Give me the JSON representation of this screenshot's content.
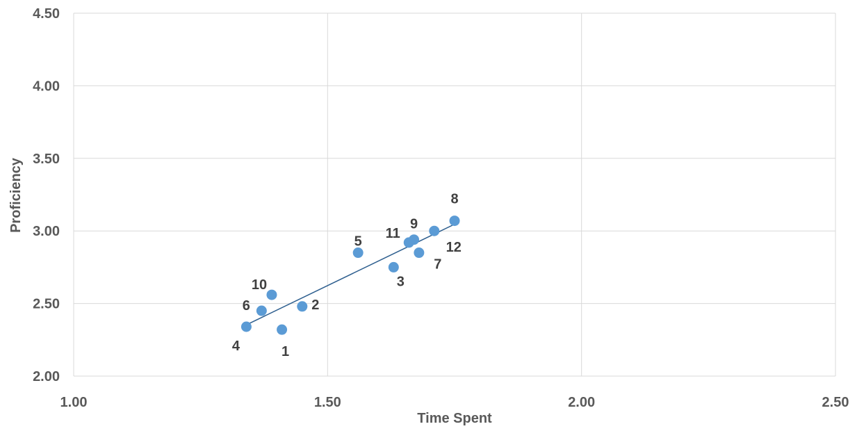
{
  "chart_data": {
    "type": "scatter",
    "title": "",
    "xlabel": "Time Spent",
    "ylabel": "Proficiency",
    "xlim": [
      1.0,
      2.5
    ],
    "ylim": [
      2.0,
      4.5
    ],
    "x_ticks": [
      "1.00",
      "1.50",
      "2.00",
      "2.50"
    ],
    "y_ticks": [
      "2.00",
      "2.50",
      "3.00",
      "3.50",
      "4.00",
      "4.50"
    ],
    "grid": true,
    "marker_color": "#5b9bd5",
    "trendline_color": "#2e5f8f",
    "trendline": true,
    "points": [
      {
        "label": "1",
        "x": 1.41,
        "y": 2.32
      },
      {
        "label": "2",
        "x": 1.45,
        "y": 2.48
      },
      {
        "label": "3",
        "x": 1.63,
        "y": 2.75
      },
      {
        "label": "4",
        "x": 1.34,
        "y": 2.34
      },
      {
        "label": "5",
        "x": 1.56,
        "y": 2.85
      },
      {
        "label": "6",
        "x": 1.37,
        "y": 2.45
      },
      {
        "label": "7",
        "x": 1.68,
        "y": 2.85
      },
      {
        "label": "8",
        "x": 1.75,
        "y": 3.07
      },
      {
        "label": "9",
        "x": 1.67,
        "y": 2.94
      },
      {
        "label": "10",
        "x": 1.39,
        "y": 2.56
      },
      {
        "label": "11",
        "x": 1.66,
        "y": 2.92
      },
      {
        "label": "12",
        "x": 1.71,
        "y": 3.0
      }
    ]
  }
}
